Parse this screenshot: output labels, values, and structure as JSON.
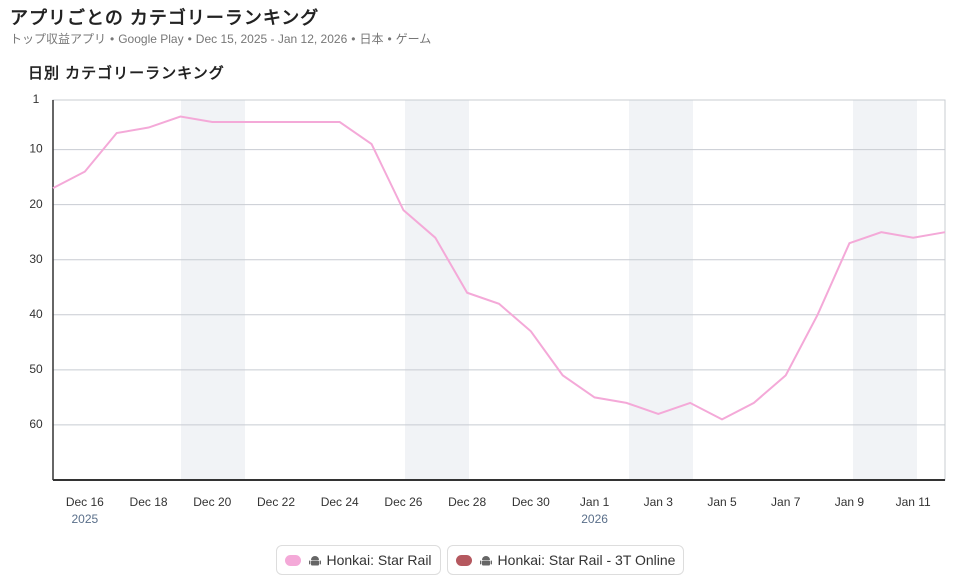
{
  "header": {
    "title": "アプリごとの カテゴリーランキング",
    "subtitle": [
      "トップ収益アプリ",
      "Google Play",
      "Dec 15, 2025 - Jan 12, 2026",
      "日本",
      "ゲーム"
    ]
  },
  "chart_data": {
    "type": "line",
    "title": "日別 カテゴリーランキング",
    "categories": [
      null,
      "Dec 16",
      null,
      "Dec 18",
      null,
      "Dec 20",
      null,
      "Dec 22",
      null,
      "Dec 24",
      null,
      "Dec 26",
      null,
      "Dec 28",
      null,
      "Dec 30",
      null,
      "Jan 1",
      null,
      "Jan 3",
      null,
      "Jan 5",
      null,
      "Jan 7",
      null,
      "Jan 9",
      null,
      "Jan 11",
      null
    ],
    "years": [
      null,
      "2025",
      null,
      null,
      null,
      null,
      null,
      null,
      null,
      null,
      null,
      null,
      null,
      null,
      null,
      null,
      null,
      "2026",
      null,
      null,
      null,
      null,
      null,
      null,
      null,
      null,
      null,
      null,
      null
    ],
    "series": [
      {
        "name": "Honkai: Star Rail",
        "color": "#f4a9d8",
        "values": [
          17,
          14,
          7,
          6,
          4,
          5,
          5,
          5,
          5,
          5,
          9,
          21,
          26,
          36,
          38,
          43,
          51,
          55,
          56,
          58,
          56,
          59,
          56,
          51,
          40,
          27,
          25,
          26,
          25
        ]
      },
      {
        "name": "Honkai: Star Rail - 3T Online",
        "color": "#b5585f",
        "values": [
          null,
          null,
          null,
          null,
          null,
          null,
          null,
          null,
          null,
          null,
          null,
          null,
          null,
          null,
          null,
          null,
          null,
          null,
          null,
          null,
          null,
          null,
          null,
          null,
          null,
          null,
          null,
          null,
          null
        ]
      }
    ],
    "ylim": [
      1,
      70
    ],
    "y_inverted": true,
    "yticks": [
      1,
      10,
      20,
      30,
      40,
      50,
      60
    ],
    "grid": true
  }
}
